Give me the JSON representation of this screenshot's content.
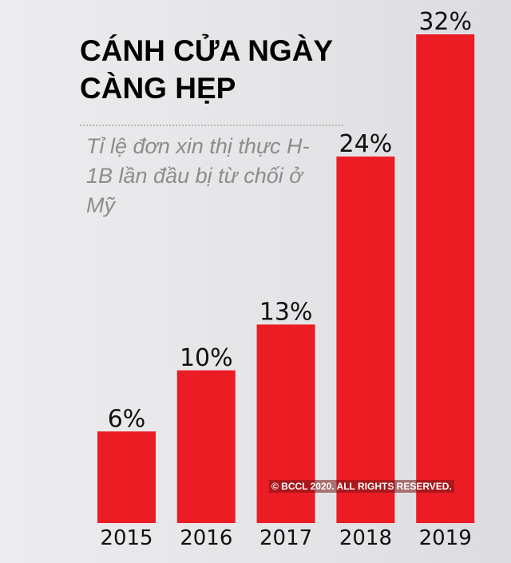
{
  "chart_data": {
    "type": "bar",
    "title": "CÁNH CỬA NGÀY CÀNG HẸP",
    "subtitle": "Tỉ lệ đơn xin thị thực H-1B lần đầu bị từ chối ở Mỹ",
    "annotation": "© BCCL 2020. ALL RIGHTS RESERVED.",
    "categories": [
      "2015",
      "2016",
      "2017",
      "2018",
      "2019"
    ],
    "values": [
      6,
      10,
      13,
      24,
      32
    ],
    "value_labels": [
      "6%",
      "10%",
      "13%",
      "24%",
      "32%"
    ],
    "color": "#ec1c24"
  }
}
